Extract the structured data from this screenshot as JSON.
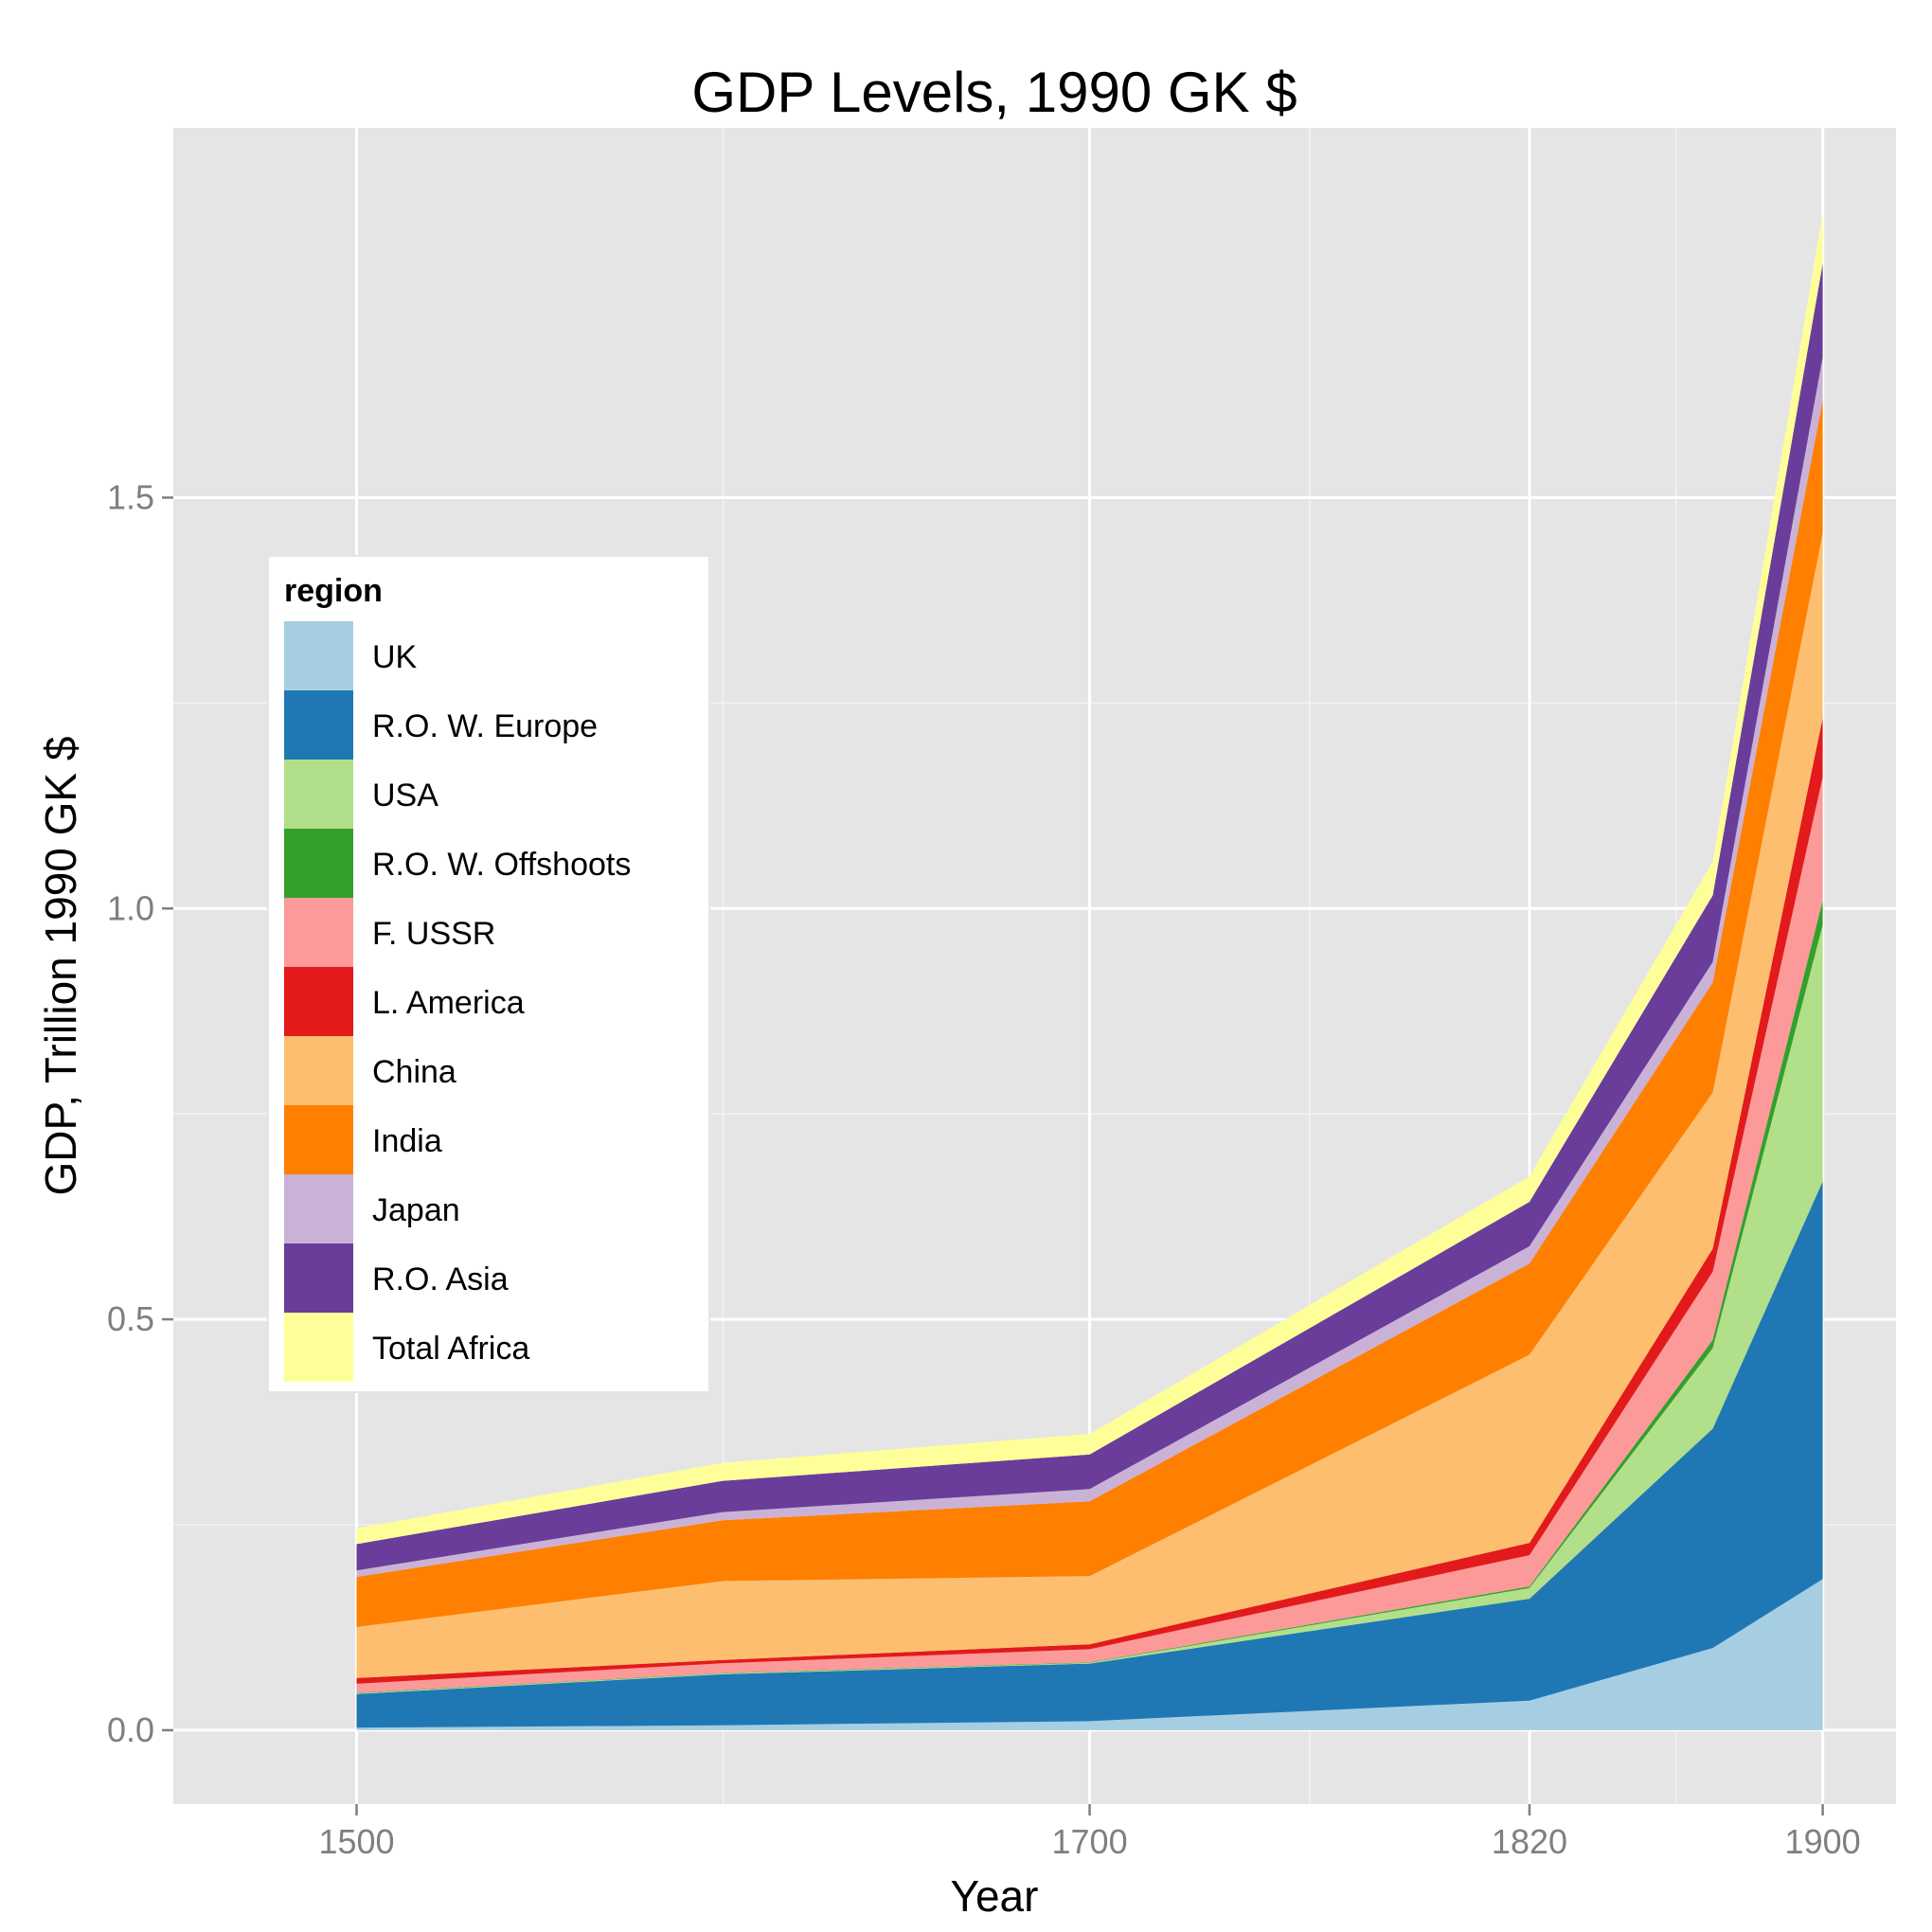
{
  "chart_data": {
    "type": "area",
    "stacked": true,
    "title": "GDP Levels, 1990 GK $",
    "xlabel": "Year",
    "ylabel": "GDP, Trillion 1990 GK $",
    "xlim": [
      1450,
      1920
    ],
    "ylim": [
      -0.09,
      1.95
    ],
    "x_ticks": [
      1500,
      1700,
      1820,
      1900
    ],
    "x_tick_labels": [
      "1500",
      "1700",
      "1820",
      "1900"
    ],
    "y_ticks": [
      0.0,
      0.5,
      1.0,
      1.5
    ],
    "y_tick_labels": [
      "0.0",
      "0.5",
      "1.0",
      "1.5"
    ],
    "grid": true,
    "legend_title": "region",
    "legend_position": "inside-left",
    "x": [
      1500,
      1600,
      1700,
      1820,
      1870,
      1900
    ],
    "series": [
      {
        "name": "UK",
        "color": "#a6cee3",
        "values": [
          0.003,
          0.006,
          0.011,
          0.036,
          0.1,
          0.184
        ]
      },
      {
        "name": "R.O. W. Europe",
        "color": "#1f78b4",
        "values": [
          0.041,
          0.062,
          0.07,
          0.124,
          0.267,
          0.484
        ]
      },
      {
        "name": "USA",
        "color": "#b2df8a",
        "values": [
          0.001,
          0.001,
          0.001,
          0.013,
          0.098,
          0.312
        ]
      },
      {
        "name": "R.O. W. Offshoots",
        "color": "#33a02c",
        "values": [
          0.0005,
          0.0005,
          0.0005,
          0.002,
          0.01,
          0.03
        ]
      },
      {
        "name": "F. USSR",
        "color": "#fb9a99",
        "values": [
          0.011,
          0.012,
          0.016,
          0.038,
          0.083,
          0.15
        ]
      },
      {
        "name": "L. America",
        "color": "#e31a1c",
        "values": [
          0.007,
          0.004,
          0.006,
          0.015,
          0.028,
          0.072
        ]
      },
      {
        "name": "China",
        "color": "#fdbf6f",
        "values": [
          0.062,
          0.096,
          0.083,
          0.229,
          0.19,
          0.225
        ]
      },
      {
        "name": "India",
        "color": "#ff7f00",
        "values": [
          0.061,
          0.074,
          0.091,
          0.111,
          0.134,
          0.162
        ]
      },
      {
        "name": "Japan",
        "color": "#cab2d6",
        "values": [
          0.008,
          0.01,
          0.015,
          0.021,
          0.025,
          0.052
        ]
      },
      {
        "name": "R.O. Asia",
        "color": "#6a3d9a",
        "values": [
          0.032,
          0.038,
          0.042,
          0.054,
          0.081,
          0.114
        ]
      },
      {
        "name": "Total Africa",
        "color": "#ffff99",
        "values": [
          0.019,
          0.022,
          0.025,
          0.031,
          0.041,
          0.061
        ]
      }
    ]
  }
}
